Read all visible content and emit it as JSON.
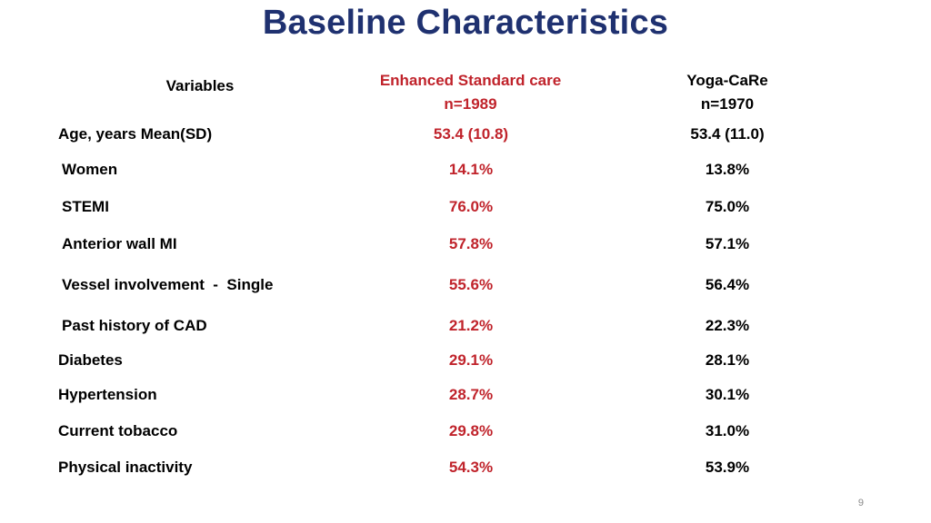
{
  "slide": {
    "title": "Baseline Characteristics",
    "page_number": "9",
    "colors": {
      "title": "#1f3170",
      "enhanced_standard_care": "#c0232b",
      "text": "#000000"
    }
  },
  "table": {
    "headers": {
      "variables": "Variables",
      "esc_name": "Enhanced Standard care",
      "esc_n": "n=1989",
      "yoga_name": "Yoga-CaRe",
      "yoga_n": "n=1970"
    },
    "rows": [
      {
        "label": "Age, years Mean(SD)",
        "esc": "53.4 (10.8)",
        "yoga": "53.4 (11.0)"
      },
      {
        "label": "Women",
        "esc": "14.1%",
        "yoga": "13.8%"
      },
      {
        "label": "STEMI",
        "esc": "76.0%",
        "yoga": "75.0%"
      },
      {
        "label": "Anterior wall MI",
        "esc": "57.8%",
        "yoga": "57.1%"
      },
      {
        "label": "Vessel involvement  -  Single",
        "esc": "55.6%",
        "yoga": "56.4%"
      },
      {
        "label": "Past history of CAD",
        "esc": "21.2%",
        "yoga": "22.3%"
      },
      {
        "label": "Diabetes",
        "esc": "29.1%",
        "yoga": "28.1%"
      },
      {
        "label": "Hypertension",
        "esc": "28.7%",
        "yoga": "30.1%"
      },
      {
        "label": "Current tobacco",
        "esc": "29.8%",
        "yoga": "31.0%"
      },
      {
        "label": "Physical inactivity",
        "esc": "54.3%",
        "yoga": "53.9%"
      }
    ]
  }
}
